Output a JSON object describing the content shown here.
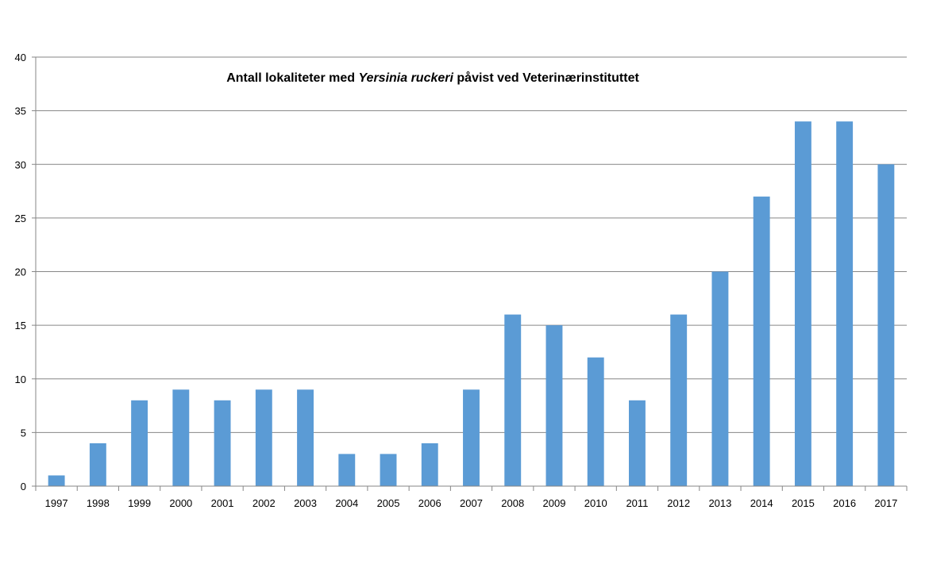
{
  "chart_data": {
    "type": "bar",
    "title_parts": [
      "Antall lokaliteter med ",
      "Yersinia ruckeri",
      " påvist ved Veterinærinstituttet"
    ],
    "categories": [
      "1997",
      "1998",
      "1999",
      "2000",
      "2001",
      "2002",
      "2003",
      "2004",
      "2005",
      "2006",
      "2007",
      "2008",
      "2009",
      "2010",
      "2011",
      "2012",
      "2013",
      "2014",
      "2015",
      "2016",
      "2017"
    ],
    "values": [
      1,
      4,
      8,
      9,
      8,
      9,
      9,
      3,
      3,
      4,
      9,
      16,
      15,
      12,
      8,
      16,
      20,
      27,
      34,
      34,
      30
    ],
    "ylim": [
      0,
      40
    ],
    "yticks": [
      "0",
      "5",
      "10",
      "15",
      "20",
      "25",
      "30",
      "35",
      "40"
    ],
    "xlabel": "",
    "ylabel": "",
    "grid": true,
    "bar_color": "#5B9BD5",
    "grid_color": "#868686"
  }
}
